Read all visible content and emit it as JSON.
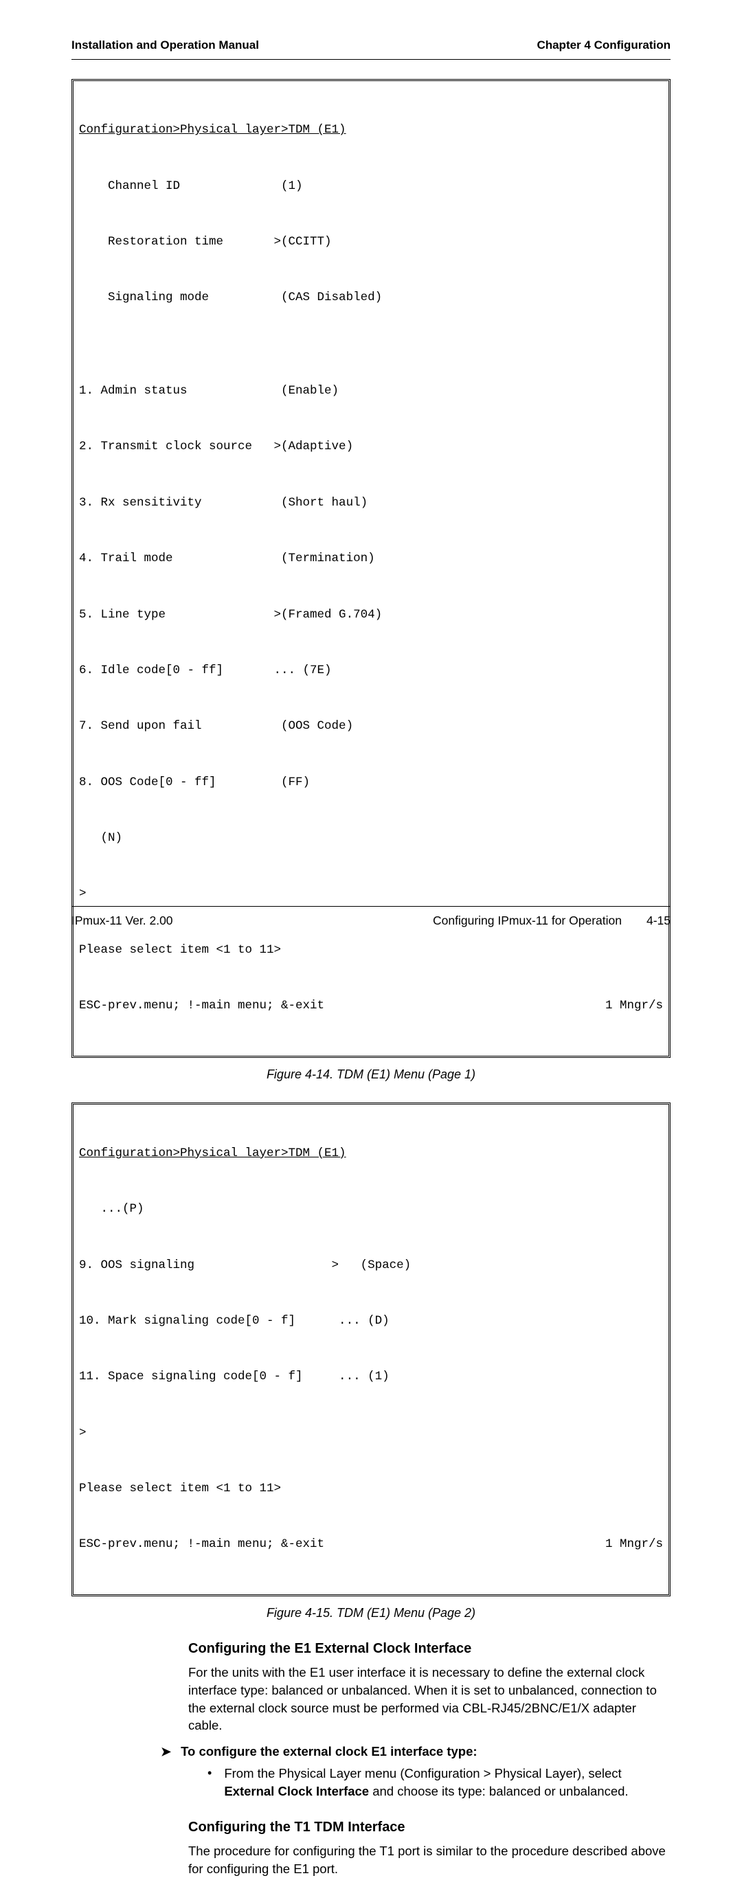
{
  "header": {
    "left": "Installation and Operation Manual",
    "right": "Chapter 4  Configuration"
  },
  "terminal1": {
    "breadcrumb": "Configuration>Physical layer>TDM (E1)",
    "lines": [
      "    Channel ID              (1)",
      "    Restoration time       >(CCITT)",
      "    Signaling mode          (CAS Disabled)",
      "",
      "1. Admin status             (Enable)",
      "2. Transmit clock source   >(Adaptive)",
      "3. Rx sensitivity           (Short haul)",
      "4. Trail mode               (Termination)",
      "5. Line type               >(Framed G.704)",
      "6. Idle code[0 - ff]       ... (7E)",
      "7. Send upon fail           (OOS Code)",
      "8. OOS Code[0 - ff]         (FF)",
      "   (N)",
      ">",
      "Please select item <1 to 11>"
    ],
    "nav_left": "ESC-prev.menu; !-main menu; &-exit",
    "nav_right": "1 Mngr/s"
  },
  "caption1": "Figure 4-14.  TDM (E1) Menu (Page 1)",
  "terminal2": {
    "breadcrumb": "Configuration>Physical layer>TDM (E1)",
    "lines": [
      "   ...(P)",
      "9. OOS signaling                   >   (Space)",
      "10. Mark signaling code[0 - f]      ... (D)",
      "11. Space signaling code[0 - f]     ... (1)",
      ">",
      "Please select item <1 to 11>"
    ],
    "nav_left": "ESC-prev.menu; !-main menu; &-exit",
    "nav_right": "1 Mngr/s"
  },
  "caption2": "Figure 4-15.  TDM (E1) Menu (Page 2)",
  "section1": {
    "heading": "Configuring the E1 External Clock Interface",
    "para": "For the units with the E1 user interface it is necessary to define the external clock interface type: balanced or unbalanced. When it is set to unbalanced, connection to the external clock source must be performed via CBL-RJ45/2BNC/E1/X adapter cable.",
    "proc_label": "To configure the external clock E1 interface type:",
    "bullet_pre": "From the Physical Layer menu (Configuration > Physical Layer), select ",
    "bullet_bold": "External Clock Interface",
    "bullet_post": " and choose its type: balanced or unbalanced."
  },
  "section2": {
    "heading": "Configuring the T1 TDM Interface",
    "para": "The procedure for configuring the T1 port is similar to the procedure described above for configuring the E1 port."
  },
  "footer": {
    "left": "IPmux-11 Ver. 2.00",
    "right_label": "Configuring IPmux-11 for Operation",
    "page": "4-15"
  }
}
